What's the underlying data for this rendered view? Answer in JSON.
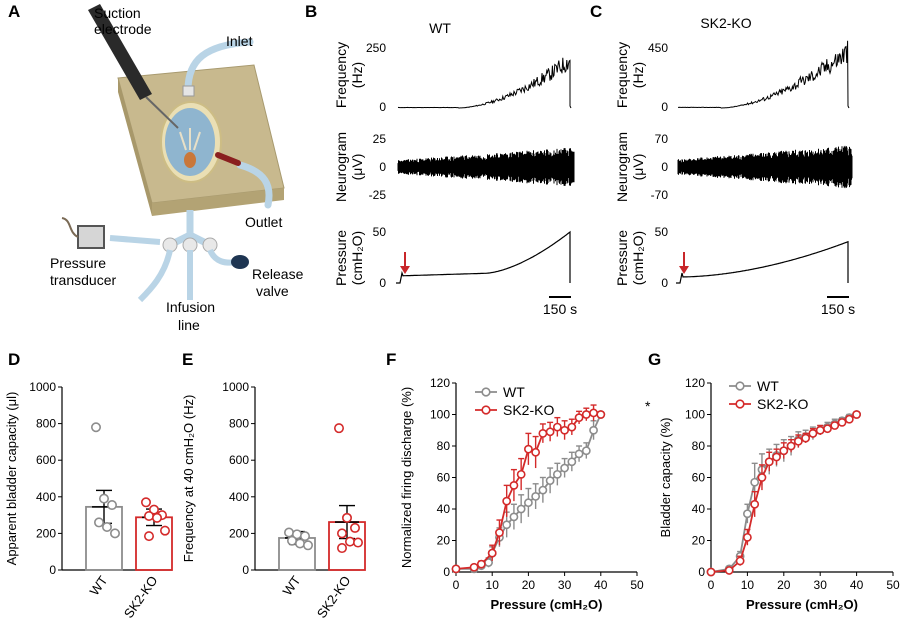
{
  "panels": {
    "A": {
      "label": "A",
      "text": {
        "suction": "Suction",
        "electrode": "electrode",
        "inlet": "Inlet",
        "outlet": "Outlet",
        "pressure": "Pressure",
        "transducer": "transducer",
        "infusion": "Infusion",
        "line": "line",
        "release": "Release",
        "valve": "valve"
      }
    },
    "B": {
      "label": "B",
      "title": "WT"
    },
    "C": {
      "label": "C",
      "title": "SK2-KO"
    },
    "D": {
      "label": "D"
    },
    "E": {
      "label": "E"
    },
    "F": {
      "label": "F",
      "star": "*"
    },
    "G": {
      "label": "G"
    }
  },
  "traces_text": {
    "freq_label": "Frequency",
    "freq_unit": "(Hz)",
    "neuro_label": "Neurogram",
    "neuro_unit": "(μV)",
    "press_label": "Pressure",
    "press_unit": "(cmH₂O)",
    "scale": "150 s",
    "B_ticks": {
      "freq": [
        "250",
        "0"
      ],
      "neuro": [
        "25",
        "0",
        "-25"
      ],
      "press": [
        "50",
        "0"
      ]
    },
    "C_ticks": {
      "freq": [
        "450",
        "0"
      ],
      "neuro": [
        "70",
        "0",
        "-70"
      ],
      "press": [
        "50",
        "0"
      ]
    }
  },
  "colors": {
    "wt": "#8c8c8c",
    "ko": "#d42a2a",
    "arrow": "#c8262a",
    "chamber": "#c8b98e",
    "tube": "#b9d4e6"
  },
  "chart_data": [
    {
      "id": "D",
      "type": "bar",
      "ylabel": "Apparent bladder capacity (μl)",
      "yticks": [
        "0",
        "200",
        "400",
        "600",
        "800",
        "1000"
      ],
      "ylim": [
        0,
        1000
      ],
      "categories": [
        "WT",
        "SK2-KO"
      ],
      "values": [
        345,
        288
      ],
      "sem": [
        90,
        45
      ],
      "points": [
        [
          780,
          390,
          355,
          260,
          235,
          200
        ],
        [
          370,
          330,
          300,
          295,
          285,
          215,
          185
        ]
      ]
    },
    {
      "id": "E",
      "type": "bar",
      "ylabel": "Frequency at 40 cmH₂O (Hz)",
      "yticks": [
        "0",
        "200",
        "400",
        "600",
        "800",
        "1000"
      ],
      "ylim": [
        0,
        1000
      ],
      "categories": [
        "WT",
        "SK2-KO"
      ],
      "values": [
        175,
        262
      ],
      "sem": [
        35,
        90
      ],
      "points": [
        [
          205,
          195,
          185,
          160,
          145,
          135
        ],
        [
          775,
          285,
          230,
          200,
          155,
          150,
          120
        ]
      ]
    },
    {
      "id": "F",
      "type": "line",
      "xlabel": "Pressure (cmH₂O)",
      "ylabel": "Normalized firing discharge (%)",
      "xticks": [
        "0",
        "10",
        "20",
        "30",
        "40",
        "50"
      ],
      "yticks": [
        "0",
        "20",
        "40",
        "60",
        "80",
        "100",
        "120"
      ],
      "xlim": [
        0,
        50
      ],
      "ylim": [
        0,
        120
      ],
      "series": [
        {
          "name": "WT",
          "x": [
            0,
            5,
            7,
            9,
            10,
            12,
            14,
            16,
            18,
            20,
            22,
            24,
            26,
            28,
            30,
            32,
            34,
            36,
            38,
            40
          ],
          "y": [
            2,
            2,
            4,
            6,
            12,
            22,
            30,
            35,
            40,
            44,
            48,
            52,
            58,
            62,
            66,
            70,
            75,
            77,
            90,
            100
          ],
          "err": [
            0,
            0,
            2,
            3,
            4,
            6,
            8,
            8,
            9,
            9,
            8,
            8,
            8,
            7,
            6,
            6,
            5,
            5,
            6,
            0
          ]
        },
        {
          "name": "SK2-KO",
          "x": [
            0,
            5,
            7,
            10,
            12,
            14,
            16,
            18,
            20,
            22,
            24,
            26,
            28,
            30,
            32,
            34,
            36,
            38,
            40
          ],
          "y": [
            2,
            3,
            5,
            12,
            25,
            45,
            55,
            62,
            78,
            76,
            88,
            89,
            92,
            90,
            92,
            98,
            100,
            101,
            100
          ],
          "err": [
            0,
            0,
            2,
            5,
            8,
            10,
            10,
            10,
            10,
            10,
            6,
            6,
            6,
            6,
            5,
            4,
            4,
            5,
            0
          ]
        }
      ]
    },
    {
      "id": "G",
      "type": "line",
      "xlabel": "Pressure (cmH₂O)",
      "ylabel": "Bladder capacity (%)",
      "xticks": [
        "0",
        "10",
        "20",
        "30",
        "40",
        "50"
      ],
      "yticks": [
        "0",
        "20",
        "40",
        "60",
        "80",
        "100",
        "120"
      ],
      "xlim": [
        0,
        50
      ],
      "ylim": [
        0,
        120
      ],
      "series": [
        {
          "name": "WT",
          "x": [
            0,
            5,
            8,
            10,
            12,
            14,
            16,
            18,
            20,
            22,
            24,
            26,
            28,
            30,
            32,
            34,
            36,
            38,
            40
          ],
          "y": [
            0,
            2,
            10,
            37,
            57,
            65,
            70,
            74,
            77,
            80,
            84,
            86,
            88,
            90,
            92,
            94,
            96,
            98,
            100
          ],
          "err": [
            0,
            1,
            3,
            6,
            12,
            10,
            8,
            7,
            7,
            6,
            5,
            4,
            4,
            3,
            3,
            3,
            2,
            2,
            0
          ]
        },
        {
          "name": "SK2-KO",
          "x": [
            0,
            5,
            8,
            10,
            12,
            14,
            16,
            18,
            20,
            22,
            24,
            26,
            28,
            30,
            32,
            34,
            36,
            38,
            40
          ],
          "y": [
            0,
            1,
            7,
            22,
            43,
            60,
            70,
            73,
            77,
            80,
            83,
            85,
            88,
            90,
            91,
            93,
            95,
            97,
            100
          ],
          "err": [
            0,
            1,
            3,
            5,
            8,
            8,
            6,
            5,
            5,
            4,
            4,
            3,
            3,
            3,
            2,
            2,
            2,
            2,
            0
          ]
        }
      ]
    }
  ]
}
